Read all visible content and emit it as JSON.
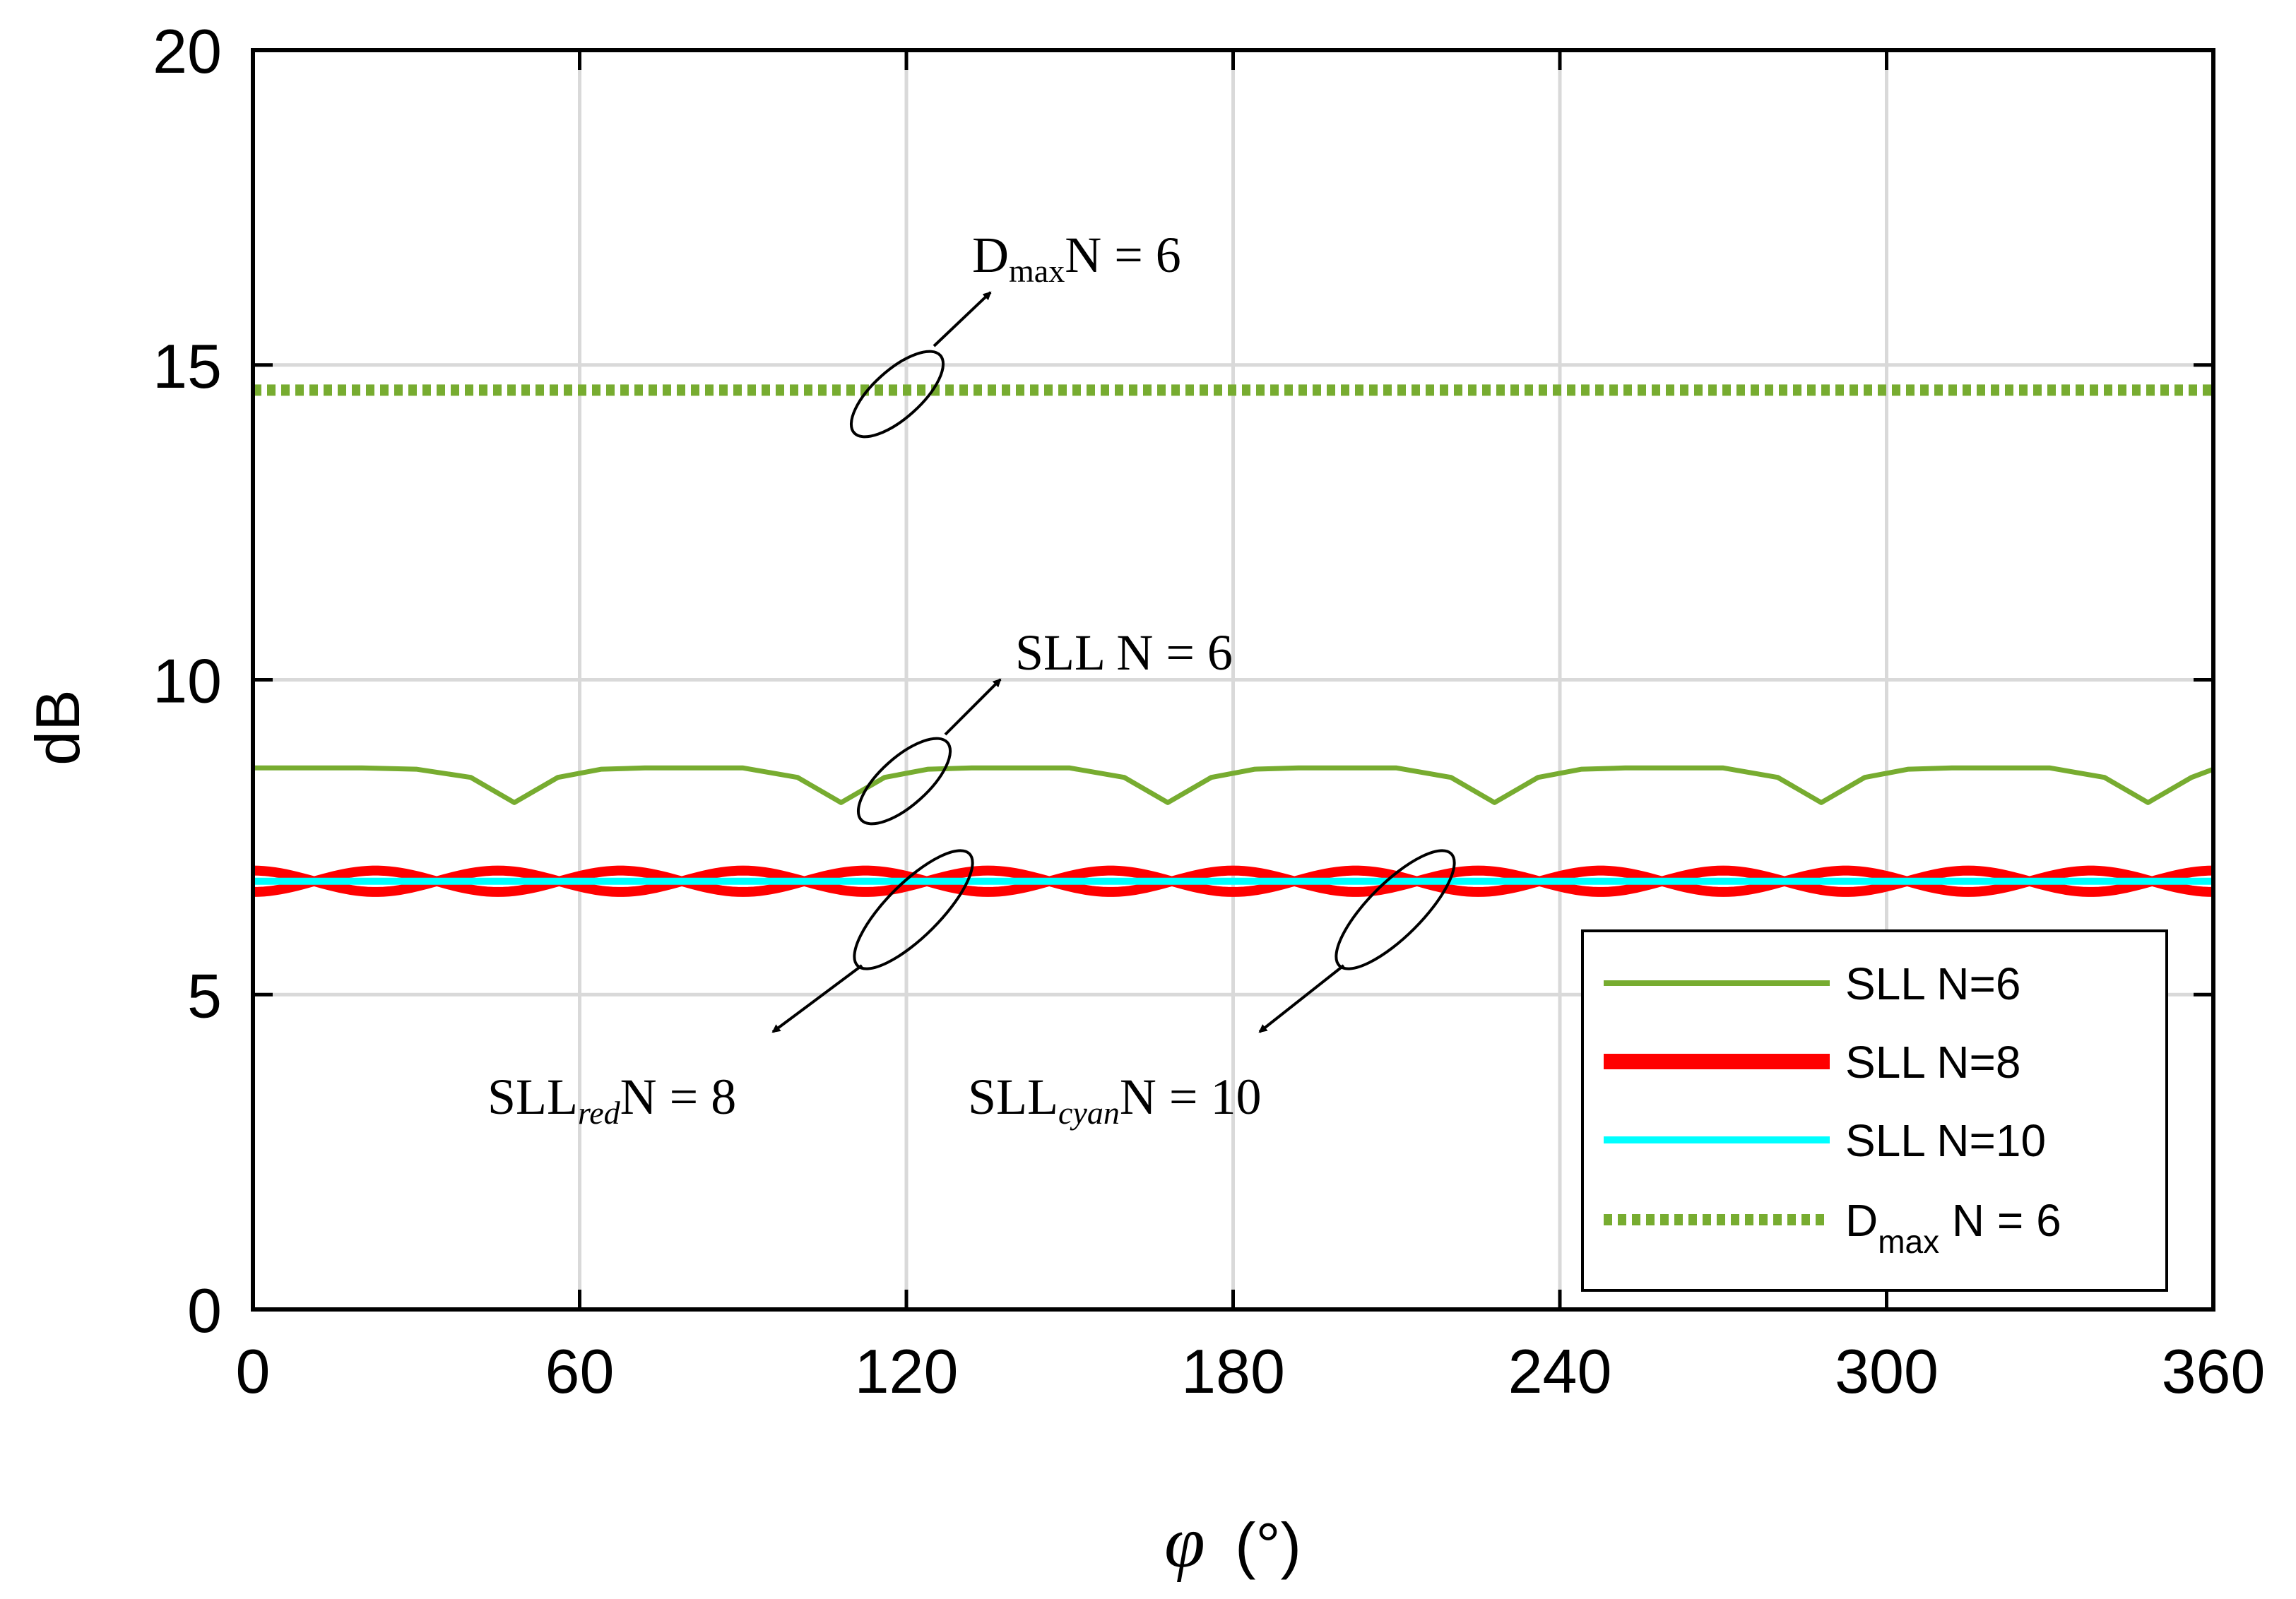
{
  "chart_data": {
    "type": "line",
    "xlabel_symbol": "φ",
    "xlabel_unit": "(°)",
    "ylabel": "dB",
    "xlim": [
      0,
      360
    ],
    "ylim": [
      0,
      20
    ],
    "xticks": [
      0,
      60,
      120,
      180,
      240,
      300,
      360
    ],
    "yticks": [
      0,
      5,
      10,
      15,
      20
    ],
    "grid": true,
    "legend_position": "bottom-right",
    "series": [
      {
        "name": "SLL N=6",
        "legend_label": "SLL N=6",
        "color": "#77AC30",
        "style": "solid",
        "x": [
          0,
          10,
          20,
          30,
          40,
          48,
          56,
          64,
          72,
          80,
          90,
          100,
          108,
          116,
          124,
          132,
          140,
          150,
          160,
          168,
          176,
          184,
          192,
          200,
          210,
          220,
          228,
          236,
          244,
          252,
          260,
          270,
          280,
          288,
          296,
          304,
          312,
          320,
          330,
          340,
          348,
          356,
          360
        ],
        "y": [
          8.6,
          8.6,
          8.6,
          8.58,
          8.45,
          8.05,
          8.45,
          8.58,
          8.6,
          8.6,
          8.6,
          8.45,
          8.05,
          8.45,
          8.58,
          8.6,
          8.6,
          8.6,
          8.45,
          8.05,
          8.45,
          8.58,
          8.6,
          8.6,
          8.6,
          8.45,
          8.05,
          8.45,
          8.58,
          8.6,
          8.6,
          8.6,
          8.45,
          8.05,
          8.45,
          8.58,
          8.6,
          8.6,
          8.6,
          8.45,
          8.05,
          8.45,
          8.58
        ]
      },
      {
        "name": "SLL N=8",
        "legend_label": "SLL N=8",
        "color": "#FF0000",
        "style": "thick-band",
        "center": 6.8,
        "amplitude": 0.17,
        "period": 45,
        "xrange": [
          0,
          360
        ]
      },
      {
        "name": "SLL N=10",
        "legend_label": "SLL N=10",
        "color": "#00FFFF",
        "style": "solid",
        "x": [
          0,
          360
        ],
        "y": [
          6.8,
          6.8
        ]
      },
      {
        "name": "Dmax N = 6",
        "legend_main": "D",
        "legend_sub": "max",
        "legend_rest": " N = 6",
        "color": "#77AC30",
        "style": "dotted",
        "x": [
          0,
          360
        ],
        "y": [
          14.6,
          14.6
        ]
      }
    ],
    "annotations": [
      {
        "id": "dmax",
        "main": "D",
        "sub": "max",
        "rest": "N = 6"
      },
      {
        "id": "sll6",
        "main": "SLL N = 6",
        "sub": "",
        "rest": ""
      },
      {
        "id": "sll8",
        "main": "SLL",
        "sub": "red",
        "rest": "N = 8"
      },
      {
        "id": "sll10",
        "main": "SLL",
        "sub": "cyan",
        "rest": "N = 10"
      }
    ]
  }
}
